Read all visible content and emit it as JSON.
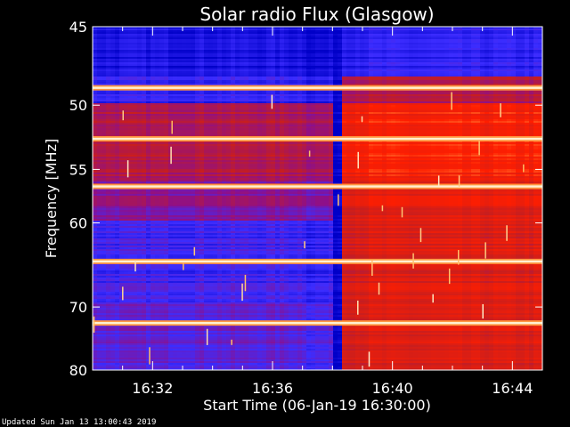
{
  "chart_data": {
    "type": "heatmap",
    "title": "Solar radio Flux (Glasgow)",
    "xlabel": "Start Time (06-Jan-19 16:30:00)",
    "ylabel": "Frequency [MHz]",
    "x_ticks": [
      "16:32",
      "16:36",
      "16:40",
      "16:44"
    ],
    "x_tick_minutes": [
      2,
      6,
      10,
      14
    ],
    "xlim_minutes": [
      0,
      15
    ],
    "y_ticks": [
      45,
      50,
      55,
      60,
      70,
      80
    ],
    "ylim": [
      45,
      80
    ],
    "y_scale": "reciprocal",
    "grid": false,
    "colormap": [
      "#0000c8",
      "#3c2dff",
      "#8c0f8c",
      "#c81e1e",
      "#ff1e00",
      "#ffb450",
      "#fff0d2"
    ],
    "step_time_minutes": 8.2,
    "bright_lines_mhz": [
      48.8,
      52.5,
      56.5,
      64.2,
      72.3
    ]
  },
  "footer": {
    "updated": "Updated Sun Jan 13 13:00:43 2019"
  }
}
